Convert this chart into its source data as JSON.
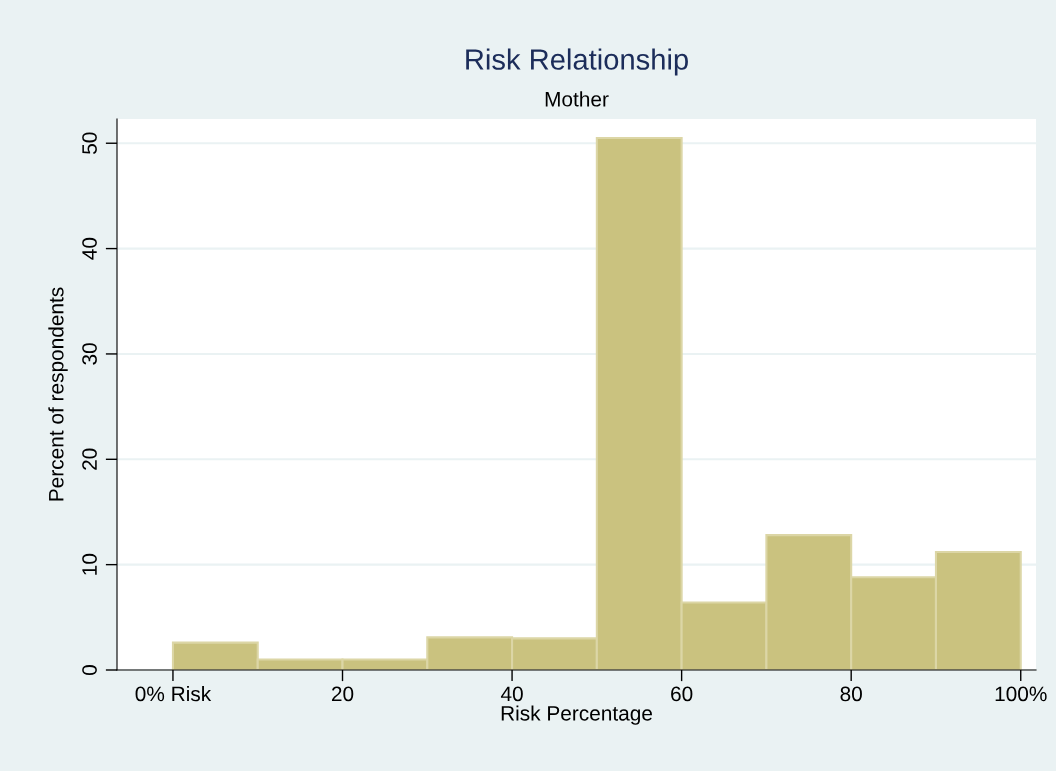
{
  "chart_data": {
    "type": "histogram",
    "title": "Risk Relationship",
    "subtitle": "Mother",
    "xlabel": "Risk Percentage",
    "ylabel": "Percent of respondents",
    "bins": [
      0,
      10,
      20,
      30,
      40,
      50,
      60,
      70,
      80,
      90,
      100
    ],
    "values": [
      2.6,
      1.0,
      1.0,
      3.1,
      3.0,
      50.5,
      6.4,
      12.8,
      8.8,
      11.2
    ],
    "color": "#cac27f",
    "xlim": [
      -6.6,
      101.8
    ],
    "ylim": [
      0,
      52.3
    ],
    "xticks": [
      {
        "value": 0,
        "label": "0% Risk"
      },
      20,
      40,
      60,
      80,
      {
        "value": 100,
        "label": "100%"
      }
    ],
    "yticks": [
      0,
      10,
      20,
      30,
      40,
      50
    ],
    "grid": "y"
  }
}
